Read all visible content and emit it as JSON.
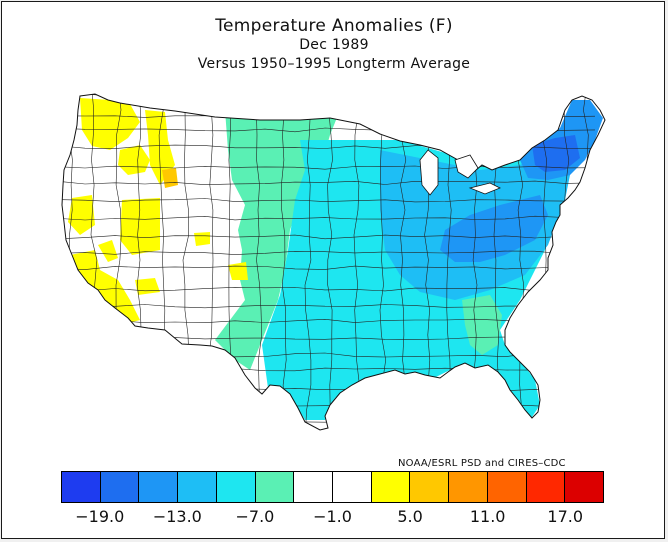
{
  "title": "Temperature Anomalies (F)",
  "subtitle_date": "Dec 1989",
  "subtitle_base": "Versus 1950–1995 Longterm Average",
  "credit": "NOAA/ESRL PSD and CIRES–CDC",
  "legend": {
    "colors": [
      "#1e3cf0",
      "#1e6ef0",
      "#1e96f5",
      "#1ebef5",
      "#1ee6f0",
      "#5af0b4",
      "#ffffff",
      "#ffffff",
      "#ffff00",
      "#ffc800",
      "#ff9600",
      "#ff6400",
      "#ff2800",
      "#dc0000"
    ],
    "ticks": [
      "−19.0",
      "−13.0",
      "−7.0",
      "−1.0",
      "5.0",
      "11.0",
      "17.0"
    ]
  },
  "map_fills": {
    "west_white": "#ffffff",
    "plains_green": "#5af0b4",
    "central_cyan": "#1ee6f0",
    "east_blue": "#1ebef5",
    "deep_blue": "#1e96f5",
    "northeast_darkblue": "#1e6ef0",
    "warm_yellow": "#ffff00",
    "warm_orange": "#ffc800"
  }
}
